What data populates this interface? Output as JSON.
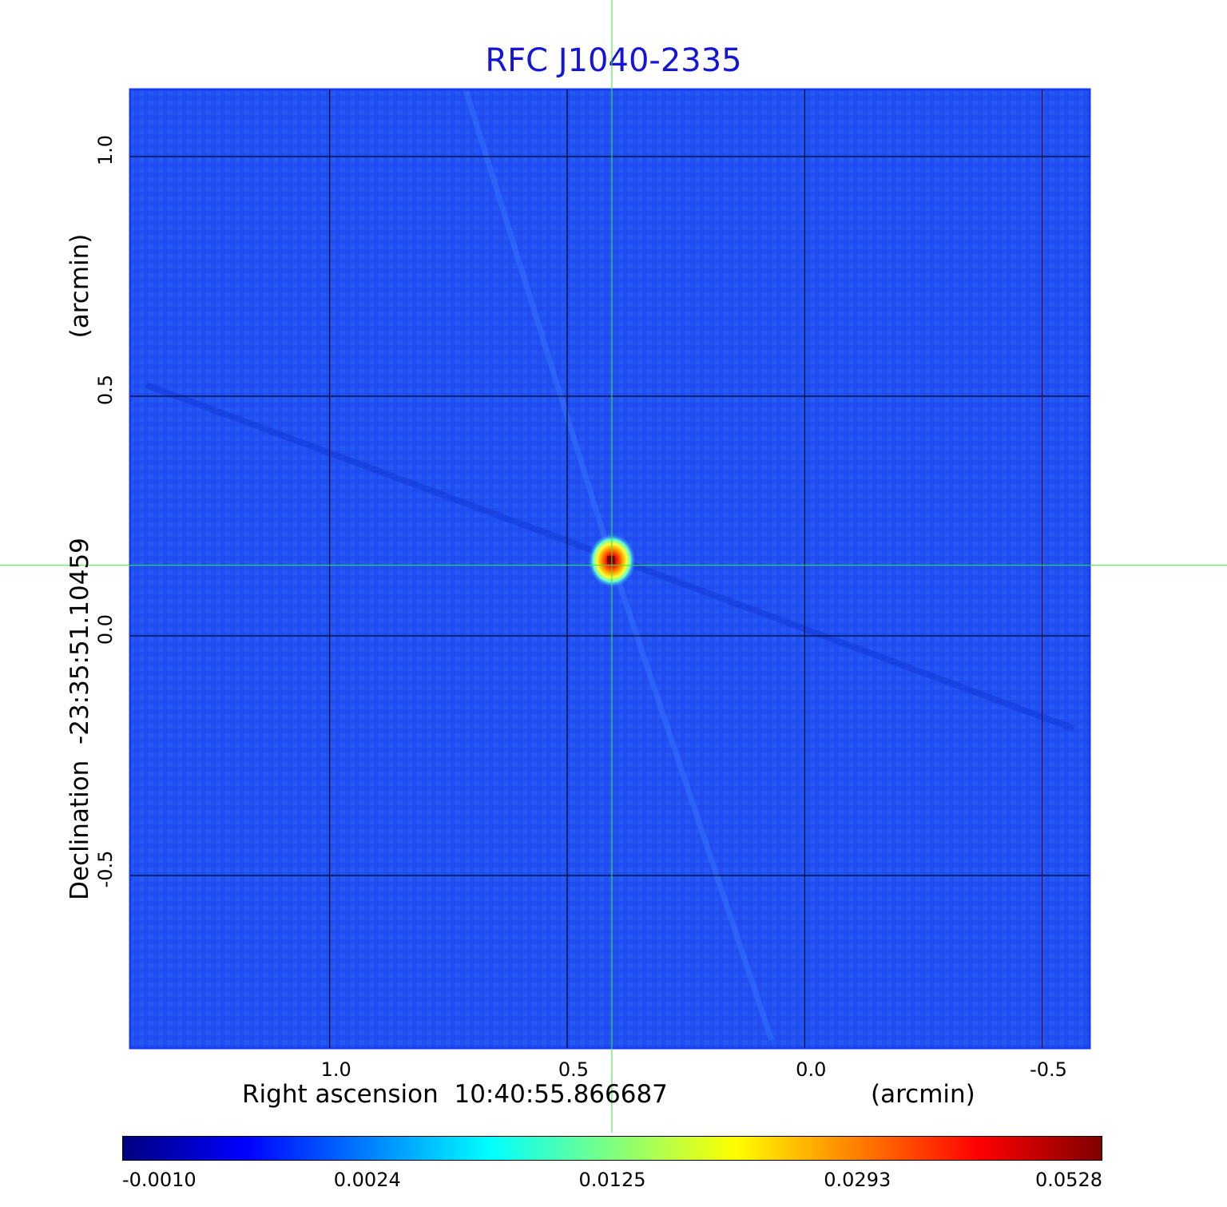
{
  "title": "RFC J1040-2335",
  "colors": {
    "title": "#1515d6",
    "grid": "#000000",
    "crosshair": "#33ee33",
    "frame": "#1a3cf0",
    "background_map": "#1f4ff5",
    "colormap": [
      "#00007f",
      "#0000ff",
      "#007fff",
      "#00ffff",
      "#7fff7f",
      "#ffff00",
      "#ff7f00",
      "#ff0000",
      "#7f0000"
    ]
  },
  "chart_data": {
    "type": "heatmap",
    "title": "RFC J1040-2335",
    "xlabel": "Right ascension  10:40:55.866687",
    "xunit": "(arcmin)",
    "ylabel": "Declination  -23:35:51.10459",
    "yunit": "(arcmin)",
    "x_ticks": [
      {
        "label": "1.0",
        "value": 1.0
      },
      {
        "label": "0.5",
        "value": 0.5
      },
      {
        "label": "0.0",
        "value": 0.0
      },
      {
        "label": "-0.5",
        "value": -0.5
      }
    ],
    "y_ticks": [
      {
        "label": "1.0",
        "value": 1.0
      },
      {
        "label": "0.5",
        "value": 0.5
      },
      {
        "label": "0.0",
        "value": 0.0
      },
      {
        "label": "-0.5",
        "value": -0.5
      }
    ],
    "xlim": [
      1.42,
      -0.6
    ],
    "ylim": [
      -0.86,
      1.14
    ],
    "grid": true,
    "crosshair": {
      "x": 0.406,
      "y": 0.147
    },
    "source": {
      "x": 0.406,
      "y": 0.157,
      "peak": 0.0528
    },
    "colorbar": {
      "labels": [
        "-0.0010",
        "0.0024",
        "0.0125",
        "0.0293",
        "0.0528"
      ],
      "values": [
        -0.001,
        0.0024,
        0.0125,
        0.0293,
        0.0528
      ],
      "placement": "bottom"
    }
  }
}
